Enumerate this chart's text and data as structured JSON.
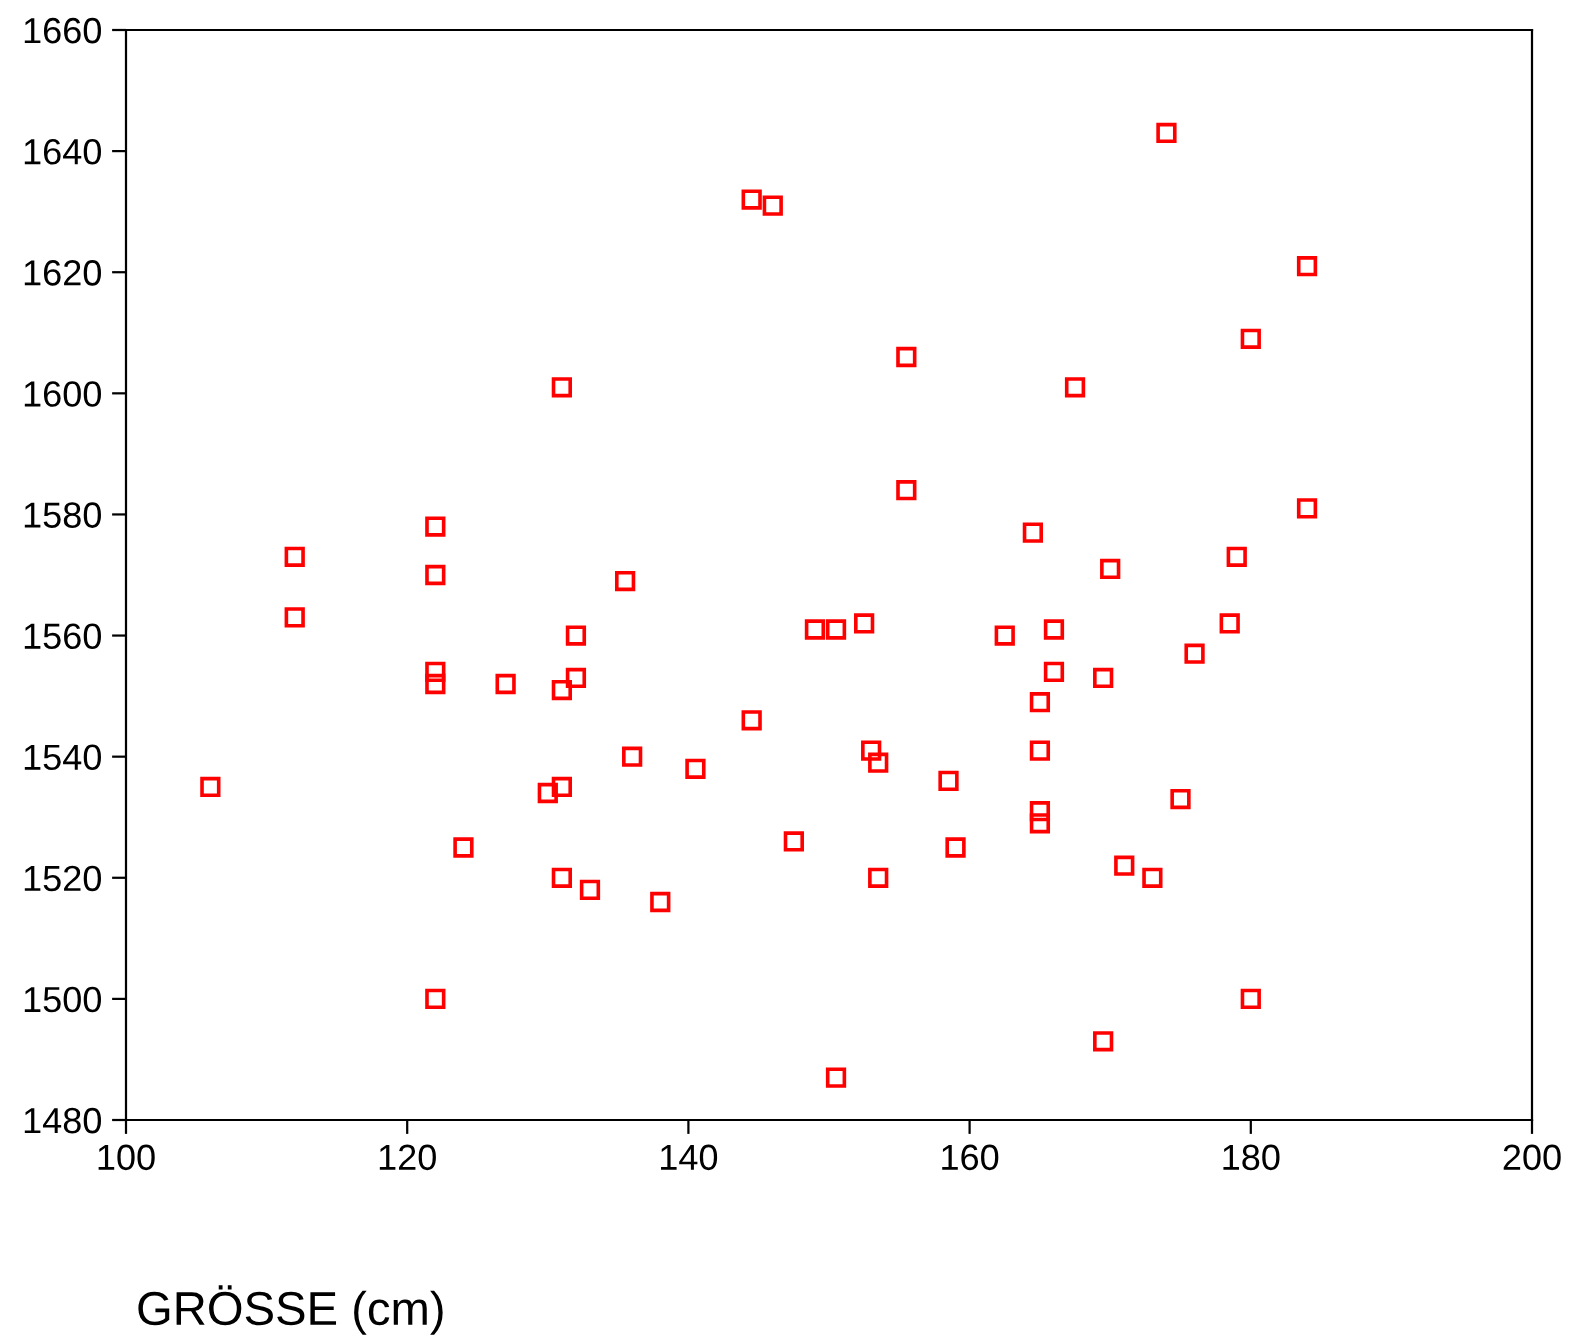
{
  "chart_data": {
    "type": "scatter",
    "xlabel": "GRÖSSE (cm)",
    "marker": "square",
    "grid": false,
    "xlim": [
      100,
      200
    ],
    "xticks": [
      100,
      120,
      140,
      160,
      180,
      200
    ],
    "ylim": [
      1480,
      1660
    ],
    "yticks": [
      1480,
      1500,
      1520,
      1540,
      1560,
      1580,
      1600,
      1620,
      1640,
      1660
    ],
    "series": [
      {
        "color": "#ff0000",
        "x": [
          106,
          112,
          112,
          122,
          122,
          122,
          122,
          122,
          124,
          127,
          130,
          131,
          131,
          131,
          131,
          132,
          132,
          133,
          135.5,
          136,
          138,
          140.5,
          144.5,
          144.5,
          146,
          147.5,
          149,
          150.5,
          150.5,
          152.5,
          153,
          153.5,
          153.5,
          155.5,
          155.5,
          158.5,
          159,
          162.5,
          164.5,
          165,
          165,
          165,
          165,
          166,
          166,
          167.5,
          169.5,
          169.5,
          170,
          171,
          173,
          174,
          175,
          176,
          178.5,
          179,
          180,
          180,
          184,
          184
        ],
        "values": [
          1535,
          1573,
          1563,
          1578,
          1570,
          1554,
          1552,
          1500,
          1525,
          1552,
          1534,
          1601,
          1551,
          1535,
          1520,
          1560,
          1553,
          1518,
          1569,
          1540,
          1516,
          1538,
          1632,
          1546,
          1631,
          1526,
          1561,
          1561,
          1487,
          1562,
          1541,
          1539,
          1520,
          1606,
          1584,
          1536,
          1525,
          1560,
          1577,
          1549,
          1541,
          1531,
          1529,
          1561,
          1554,
          1601,
          1553,
          1493,
          1571,
          1522,
          1520,
          1643,
          1533,
          1557,
          1562,
          1573,
          1609,
          1500,
          1621,
          1581
        ]
      }
    ]
  }
}
